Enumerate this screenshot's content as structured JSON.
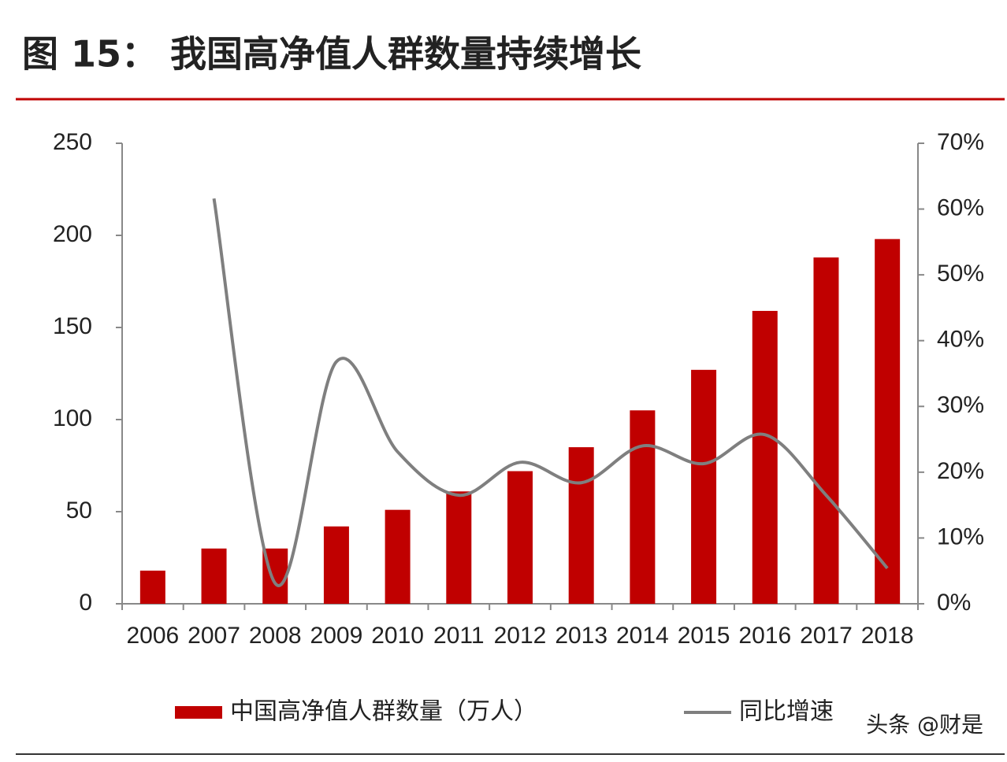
{
  "chart_data": {
    "type": "bar_line",
    "title": "图 15： 我国高净值人群数量持续增长",
    "watermark": "头条 @财是",
    "categories": [
      "2006",
      "2007",
      "2008",
      "2009",
      "2010",
      "2011",
      "2012",
      "2013",
      "2014",
      "2015",
      "2016",
      "2017",
      "2018"
    ],
    "series": [
      {
        "name": "中国高净值人群数量（万人）",
        "type": "bar",
        "color": "#c00000",
        "values": [
          18,
          30,
          30,
          42,
          51,
          61,
          72,
          85,
          105,
          127,
          159,
          188,
          198
        ]
      },
      {
        "name": "同比增速",
        "type": "line",
        "axis": "y2",
        "color": "#7f7f7f",
        "values": [
          null,
          61.6,
          3.1,
          36.8,
          23.1,
          16.5,
          21.5,
          18.4,
          24,
          21.3,
          25.7,
          16.5,
          5.4
        ]
      }
    ],
    "ylim": [
      0,
      250
    ],
    "yticks": [
      0,
      50,
      100,
      150,
      200,
      250
    ],
    "y2lim": [
      0,
      70
    ],
    "y2ticks": [
      {
        "value": 0,
        "label": "0%"
      },
      {
        "value": 10,
        "label": "10%"
      },
      {
        "value": 20,
        "label": "20%"
      },
      {
        "value": 30,
        "label": "30%"
      },
      {
        "value": 40,
        "label": "40%"
      },
      {
        "value": 50,
        "label": "50%"
      },
      {
        "value": 60,
        "label": "60%"
      },
      {
        "value": 70,
        "label": "70%"
      }
    ],
    "grid": false
  }
}
